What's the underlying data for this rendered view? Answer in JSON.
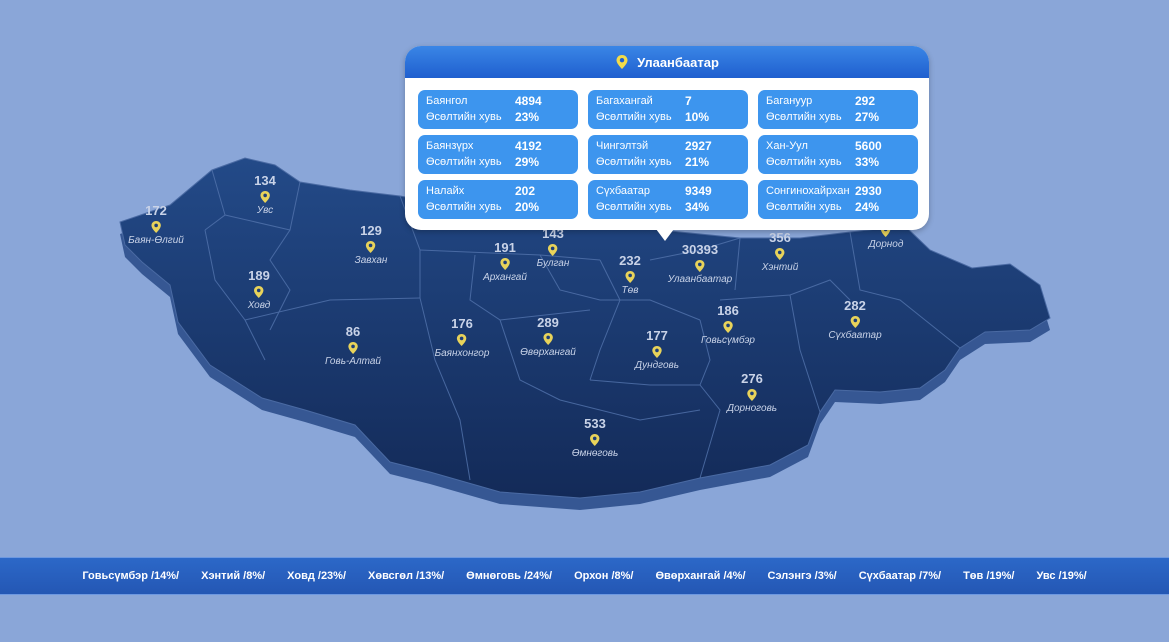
{
  "map": {
    "colors": {
      "background": "#8aa6d8",
      "land_top": "#1e3f78",
      "land_bottom": "#142c5c",
      "border": "#5374ad",
      "pin": "#e8d35a"
    },
    "pin_icon": "map-pin-icon",
    "regions": [
      {
        "name": "Баян-Өлгий",
        "value": "172"
      },
      {
        "name": "Увс",
        "value": "134"
      },
      {
        "name": "Завхан",
        "value": "129"
      },
      {
        "name": "Ховд",
        "value": "189"
      },
      {
        "name": "Говь-Алтай",
        "value": "86"
      },
      {
        "name": "Архангай",
        "value": "191"
      },
      {
        "name": "Булган",
        "value": "143"
      },
      {
        "name": "Төв",
        "value": "232"
      },
      {
        "name": "Улаанбаатар",
        "value": "30393"
      },
      {
        "name": "Хэнтий",
        "value": "356"
      },
      {
        "name": "Дорнод",
        "value": ""
      },
      {
        "name": "Баянхонгор",
        "value": "176"
      },
      {
        "name": "Өвөрхангай",
        "value": "289"
      },
      {
        "name": "Дундговь",
        "value": "177"
      },
      {
        "name": "Говьсүмбэр",
        "value": "186"
      },
      {
        "name": "Сүхбаатар",
        "value": "282"
      },
      {
        "name": "Дорноговь",
        "value": "276"
      },
      {
        "name": "Өмнөговь",
        "value": "533"
      }
    ]
  },
  "popup": {
    "title": "Улаанбаатар",
    "growth_label": "Өсөлтийн хувь",
    "districts": [
      {
        "name": "Баянгол",
        "value": "4894",
        "growth": "23%"
      },
      {
        "name": "Багахангай",
        "value": "7",
        "growth": "10%"
      },
      {
        "name": "Багануур",
        "value": "292",
        "growth": "27%"
      },
      {
        "name": "Баянзүрх",
        "value": "4192",
        "growth": "29%"
      },
      {
        "name": "Чингэлтэй",
        "value": "2927",
        "growth": "21%"
      },
      {
        "name": "Хан-Уул",
        "value": "5600",
        "growth": "33%"
      },
      {
        "name": "Налайх",
        "value": "202",
        "growth": "20%"
      },
      {
        "name": "Сүхбаатар",
        "value": "9349",
        "growth": "34%"
      },
      {
        "name": "Сонгинохайрхан",
        "value": "2930",
        "growth": "24%"
      }
    ]
  },
  "ticker": {
    "items": [
      "Говьсүмбэр /14%/",
      "Хэнтий /8%/",
      "Ховд /23%/",
      "Хөвсгөл /13%/",
      "Өмнөговь /24%/",
      "Орхон /8%/",
      "Өвөрхангай /4%/",
      "Сэлэнгэ /3%/",
      "Сүхбаатар /7%/",
      "Төв /19%/",
      "Увс /19%/"
    ]
  }
}
